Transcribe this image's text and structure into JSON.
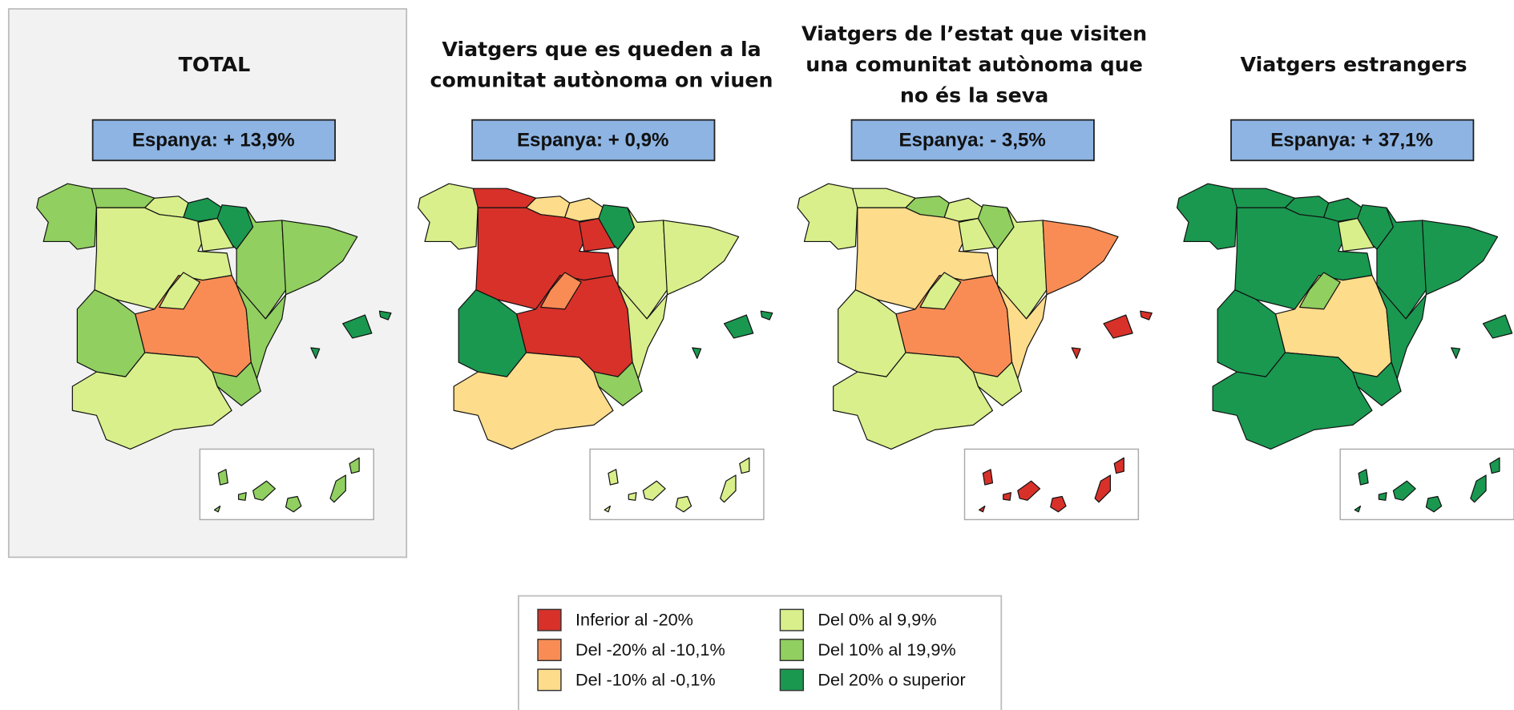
{
  "panels": [
    {
      "title": [
        "TOTAL"
      ],
      "summary": "Espanya: + 13,9%",
      "region_colors": [
        "#91cf60",
        "#91cf60",
        "#d9ef8b",
        "#1a9850",
        "#1a9850",
        "#91cf60",
        "#91cf60",
        "#d9ef8b",
        "#d9ef8b",
        "#f98c55",
        "#d9ef8b",
        "#91cf60",
        "#91cf60",
        "#91cf60",
        "#d9ef8b",
        "#1a9850",
        "#91cf60"
      ]
    },
    {
      "title": [
        "Viatgers que es queden a la",
        "comunitat autònoma on viuen"
      ],
      "summary": "Espanya: + 0,9%",
      "region_colors": [
        "#d9ef8b",
        "#d7312a",
        "#fddc8b",
        "#fddc8b",
        "#1a9850",
        "#d9ef8b",
        "#d9ef8b",
        "#d7312a",
        "#d7312a",
        "#d7312a",
        "#f98c55",
        "#1a9850",
        "#d9ef8b",
        "#91cf60",
        "#fddc8b",
        "#1a9850",
        "#d9ef8b"
      ]
    },
    {
      "title": [
        "Viatgers de l’estat que visiten",
        "una comunitat autònoma que",
        "no és la seva"
      ],
      "summary": "Espanya: - 3,5%",
      "region_colors": [
        "#d9ef8b",
        "#d9ef8b",
        "#91cf60",
        "#d9ef8b",
        "#91cf60",
        "#d9ef8b",
        "#f98c55",
        "#fddc8b",
        "#d9ef8b",
        "#f98c55",
        "#d9ef8b",
        "#d9ef8b",
        "#fddc8b",
        "#d9ef8b",
        "#d9ef8b",
        "#d7312a",
        "#d7312a"
      ]
    },
    {
      "title": [
        "Viatgers estrangers"
      ],
      "summary": "Espanya: + 37,1%",
      "region_colors": [
        "#1a9850",
        "#1a9850",
        "#1a9850",
        "#1a9850",
        "#1a9850",
        "#1a9850",
        "#1a9850",
        "#1a9850",
        "#d9ef8b",
        "#fddc8b",
        "#91cf60",
        "#1a9850",
        "#1a9850",
        "#1a9850",
        "#1a9850",
        "#1a9850",
        "#1a9850"
      ]
    }
  ],
  "legend": [
    {
      "label": "Inferior al -20%",
      "color": "#d7312a"
    },
    {
      "label": "Del -20% al -10,1%",
      "color": "#f98c55"
    },
    {
      "label": "Del -10% al -0,1%",
      "color": "#fddc8b"
    },
    {
      "label": "Del 0% al 9,9%",
      "color": "#d9ef8b"
    },
    {
      "label": "Del 10% al 19,9%",
      "color": "#91cf60"
    },
    {
      "label": "Del 20% o superior",
      "color": "#1a9850"
    }
  ]
}
